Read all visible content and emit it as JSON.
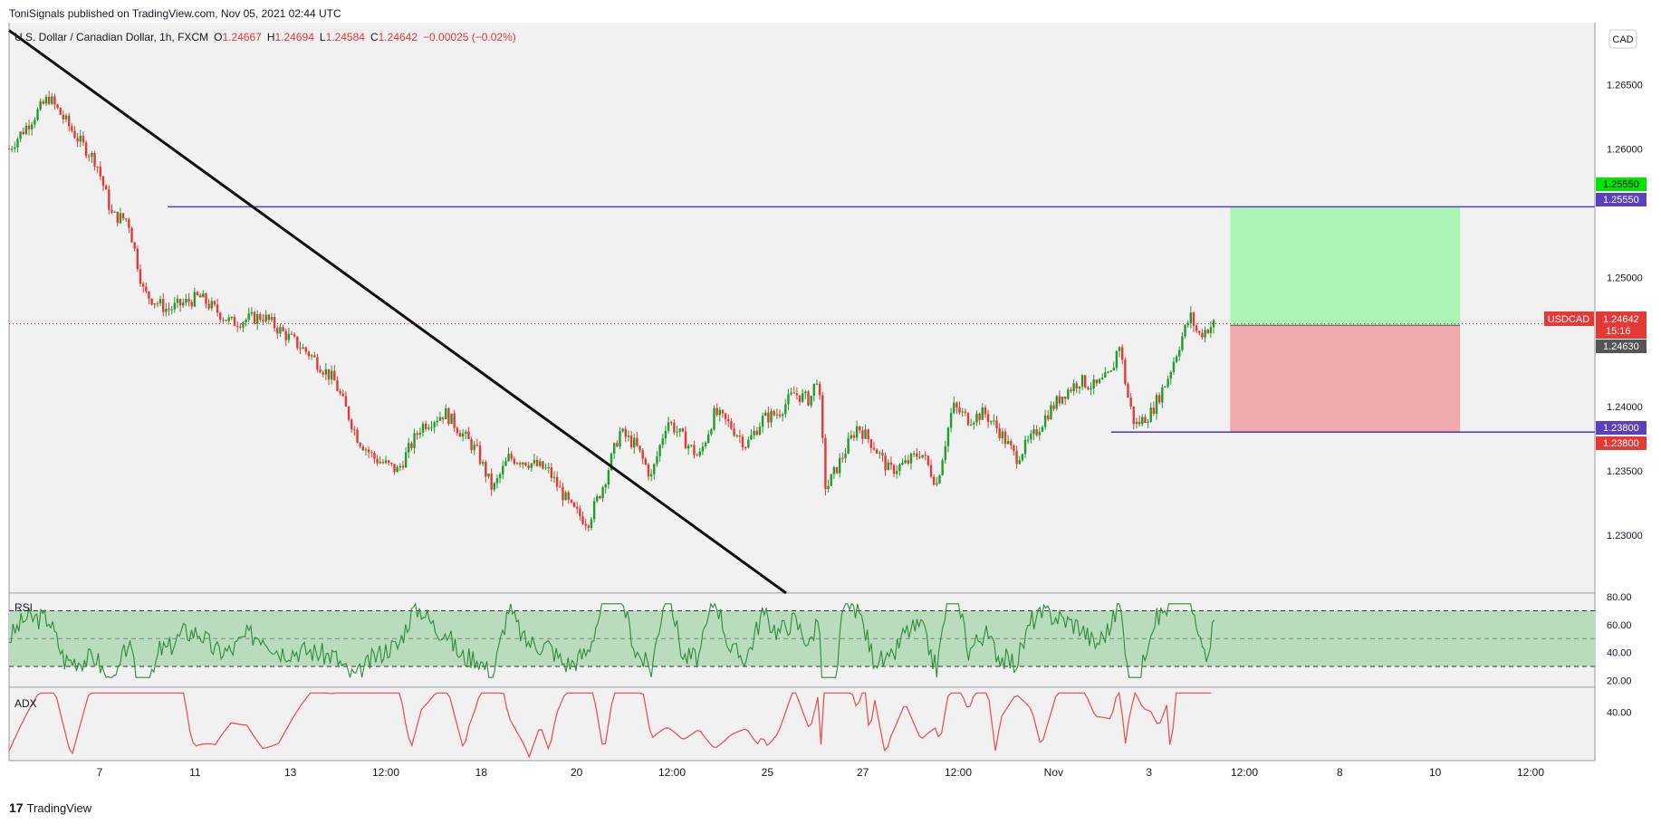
{
  "header": {
    "published": "ToniSignals published on TradingView.com, Nov 05, 2021 02:44 UTC"
  },
  "footer": {
    "logo": "17",
    "brand": "TradingView"
  },
  "legend": {
    "symbol": "U.S. Dollar / Canadian Dollar, 1h, FXCM",
    "o_label": "O",
    "o": "1.24667",
    "h_label": "H",
    "h": "1.24694",
    "l_label": "L",
    "l": "1.24584",
    "c_label": "C",
    "c": "1.24642",
    "change": "−0.00025 (−0.02%)"
  },
  "currency_label": "CAD",
  "colors": {
    "up": "#26a69a",
    "candle_up": "#1e9e28",
    "candle_down": "#e53935",
    "line": "#5b3fbf",
    "tp_zone": "#adf5b4",
    "sl_zone": "#f0a9ab",
    "rsi_band": "#b9dcbc",
    "adx": "#f04848"
  },
  "price_labels": {
    "target_green": "1.25550",
    "target_purple": "1.25550",
    "symbol_tag": "USDCAD",
    "last_price": "1.24642",
    "countdown": "15:16",
    "entry": "1.24630",
    "stop_purple": "1.23800",
    "stop_red": "1.23800"
  },
  "panes": {
    "rsi": "RSI",
    "adx": "ADX"
  },
  "chart_data": [
    {
      "type": "candlestick",
      "title": "",
      "y_ticks": [
        "1.26500",
        "1.26000",
        "1.25000",
        "1.24000",
        "1.23500",
        "1.23000"
      ],
      "ylim": [
        1.2255,
        1.2698
      ],
      "x_ticks": [
        "7",
        "11",
        "13",
        "12:00",
        "18",
        "20",
        "12:00",
        "25",
        "27",
        "12:00",
        "Nov",
        "3",
        "12:00",
        "8",
        "10",
        "12:00"
      ],
      "close_path": [
        [
          0,
          1.26
        ],
        [
          5,
          1.264
        ],
        [
          9,
          1.2605
        ],
        [
          11,
          1.259
        ],
        [
          13,
          1.2548
        ],
        [
          15,
          1.2545
        ],
        [
          17,
          1.2488
        ],
        [
          20,
          1.2475
        ],
        [
          24,
          1.2485
        ],
        [
          28,
          1.2465
        ],
        [
          32,
          1.247
        ],
        [
          35,
          1.2455
        ],
        [
          38,
          1.244
        ],
        [
          41,
          1.242
        ],
        [
          44,
          1.2375
        ],
        [
          46,
          1.236
        ],
        [
          49,
          1.235
        ],
        [
          52,
          1.2385
        ],
        [
          55,
          1.2395
        ],
        [
          57,
          1.238
        ],
        [
          59,
          1.2365
        ],
        [
          61,
          1.2335
        ],
        [
          63,
          1.236
        ],
        [
          65,
          1.2358
        ],
        [
          68,
          1.235
        ],
        [
          71,
          1.232
        ],
        [
          73,
          1.231
        ],
        [
          75,
          1.234
        ],
        [
          77,
          1.238
        ],
        [
          79,
          1.237
        ],
        [
          81,
          1.2345
        ],
        [
          83,
          1.239
        ],
        [
          85,
          1.2375
        ],
        [
          87,
          1.236
        ],
        [
          89,
          1.2395
        ],
        [
          91,
          1.2385
        ],
        [
          93,
          1.237
        ],
        [
          95,
          1.239
        ],
        [
          97,
          1.2395
        ],
        [
          99,
          1.241
        ],
        [
          101,
          1.2405
        ],
        [
          102,
          1.2425
        ],
        [
          103,
          1.2335
        ],
        [
          105,
          1.236
        ],
        [
          107,
          1.2385
        ],
        [
          109,
          1.237
        ],
        [
          111,
          1.235
        ],
        [
          113,
          1.2355
        ],
        [
          115,
          1.2365
        ],
        [
          117,
          1.234
        ],
        [
          119,
          1.24
        ],
        [
          121,
          1.239
        ],
        [
          123,
          1.2395
        ],
        [
          125,
          1.238
        ],
        [
          127,
          1.236
        ],
        [
          129,
          1.2375
        ],
        [
          131,
          1.2395
        ],
        [
          133,
          1.241
        ],
        [
          135,
          1.242
        ],
        [
          137,
          1.2415
        ],
        [
          139,
          1.2425
        ],
        [
          140,
          1.245
        ],
        [
          141,
          1.241
        ],
        [
          142,
          1.2385
        ],
        [
          144,
          1.2395
        ],
        [
          146,
          1.242
        ],
        [
          148,
          1.2455
        ],
        [
          149,
          1.247
        ],
        [
          150,
          1.2455
        ],
        [
          151,
          1.246
        ],
        [
          152,
          1.24642
        ]
      ],
      "x_range": [
        0,
        200
      ],
      "levels": [
        {
          "name": "target",
          "value": 1.2555
        },
        {
          "name": "entry",
          "value": 1.2463
        },
        {
          "name": "stop",
          "value": 1.238
        }
      ],
      "trendline": {
        "start": [
          0,
          1.2692
        ],
        "end": [
          98,
          1.2255
        ]
      },
      "position": {
        "x_start": 154,
        "x_end": 183,
        "target": 1.2555,
        "entry": 1.2463,
        "stop": 1.238
      }
    },
    {
      "type": "line",
      "title": "RSI",
      "y_ticks": [
        "80.00",
        "60.00",
        "40.00",
        "20.00"
      ],
      "ylim": [
        15,
        82
      ],
      "band": [
        30,
        70
      ],
      "midline": 50
    },
    {
      "type": "line",
      "title": "ADX",
      "y_ticks": [
        "40.00"
      ],
      "ylim": [
        10,
        55
      ]
    }
  ]
}
